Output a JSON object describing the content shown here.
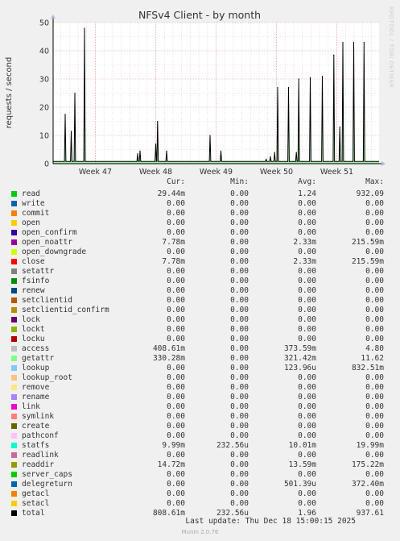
{
  "chart_data": {
    "type": "line",
    "title": "NFSv4 Client - by month",
    "ylabel": "requests / second",
    "ylim": [
      0,
      50
    ],
    "yticks": [
      0,
      10,
      20,
      30,
      40,
      50
    ],
    "xticks": [
      "Week 47",
      "Week 48",
      "Week 49",
      "Week 50",
      "Week 51"
    ],
    "xrange_weeks": [
      46.3,
      51.7
    ],
    "grid": true,
    "spikes": [
      {
        "week": 46.5,
        "value": 17.5
      },
      {
        "week": 46.6,
        "value": 11.5
      },
      {
        "week": 46.66,
        "value": 25
      },
      {
        "week": 46.82,
        "value": 48
      },
      {
        "week": 47.7,
        "value": 3.5
      },
      {
        "week": 47.74,
        "value": 4.5
      },
      {
        "week": 48.0,
        "value": 7
      },
      {
        "week": 48.03,
        "value": 15
      },
      {
        "week": 48.18,
        "value": 4.5
      },
      {
        "week": 48.9,
        "value": 10
      },
      {
        "week": 49.08,
        "value": 4.5
      },
      {
        "week": 49.83,
        "value": 1.5
      },
      {
        "week": 49.9,
        "value": 2.5
      },
      {
        "week": 49.97,
        "value": 4
      },
      {
        "week": 50.02,
        "value": 27
      },
      {
        "week": 50.2,
        "value": 27
      },
      {
        "week": 50.33,
        "value": 4
      },
      {
        "week": 50.37,
        "value": 30
      },
      {
        "week": 50.56,
        "value": 30.5
      },
      {
        "week": 50.76,
        "value": 31
      },
      {
        "week": 50.95,
        "value": 38.5
      },
      {
        "week": 51.05,
        "value": 13
      },
      {
        "week": 51.1,
        "value": 43
      },
      {
        "week": 51.28,
        "value": 43
      },
      {
        "week": 51.45,
        "value": 43
      }
    ],
    "baseline": 0.8,
    "series_color": "#000000",
    "fill_color": "#00cc00"
  },
  "legend": {
    "headers": {
      "cur": "Cur:",
      "min": "Min:",
      "avg": "Avg:",
      "max": "Max:"
    },
    "rows": [
      {
        "name": "read",
        "color": "#00cc00",
        "cur": "29.44m",
        "min": "0.00",
        "avg": "1.24",
        "max": "932.09"
      },
      {
        "name": "write",
        "color": "#0066b3",
        "cur": "0.00",
        "min": "0.00",
        "avg": "0.00",
        "max": "0.00"
      },
      {
        "name": "commit",
        "color": "#ff8000",
        "cur": "0.00",
        "min": "0.00",
        "avg": "0.00",
        "max": "0.00"
      },
      {
        "name": "open",
        "color": "#ffcc00",
        "cur": "0.00",
        "min": "0.00",
        "avg": "0.00",
        "max": "0.00"
      },
      {
        "name": "open_confirm",
        "color": "#330099",
        "cur": "0.00",
        "min": "0.00",
        "avg": "0.00",
        "max": "0.00"
      },
      {
        "name": "open_noattr",
        "color": "#990099",
        "cur": "7.78m",
        "min": "0.00",
        "avg": "2.33m",
        "max": "215.59m"
      },
      {
        "name": "open_downgrade",
        "color": "#ccff00",
        "cur": "0.00",
        "min": "0.00",
        "avg": "0.00",
        "max": "0.00"
      },
      {
        "name": "close",
        "color": "#ff0000",
        "cur": "7.78m",
        "min": "0.00",
        "avg": "2.33m",
        "max": "215.59m"
      },
      {
        "name": "setattr",
        "color": "#808080",
        "cur": "0.00",
        "min": "0.00",
        "avg": "0.00",
        "max": "0.00"
      },
      {
        "name": "fsinfo",
        "color": "#008f00",
        "cur": "0.00",
        "min": "0.00",
        "avg": "0.00",
        "max": "0.00"
      },
      {
        "name": "renew",
        "color": "#00487d",
        "cur": "0.00",
        "min": "0.00",
        "avg": "0.00",
        "max": "0.00"
      },
      {
        "name": "setclientid",
        "color": "#b35a00",
        "cur": "0.00",
        "min": "0.00",
        "avg": "0.00",
        "max": "0.00"
      },
      {
        "name": "setclientid_confirm",
        "color": "#b38f00",
        "cur": "0.00",
        "min": "0.00",
        "avg": "0.00",
        "max": "0.00"
      },
      {
        "name": "lock",
        "color": "#6b006b",
        "cur": "0.00",
        "min": "0.00",
        "avg": "0.00",
        "max": "0.00"
      },
      {
        "name": "lockt",
        "color": "#8fb300",
        "cur": "0.00",
        "min": "0.00",
        "avg": "0.00",
        "max": "0.00"
      },
      {
        "name": "locku",
        "color": "#b30000",
        "cur": "0.00",
        "min": "0.00",
        "avg": "0.00",
        "max": "0.00"
      },
      {
        "name": "access",
        "color": "#bebebe",
        "cur": "408.61m",
        "min": "0.00",
        "avg": "373.59m",
        "max": "4.80"
      },
      {
        "name": "getattr",
        "color": "#80ff80",
        "cur": "330.28m",
        "min": "0.00",
        "avg": "321.42m",
        "max": "11.62"
      },
      {
        "name": "lookup",
        "color": "#80c9ff",
        "cur": "0.00",
        "min": "0.00",
        "avg": "123.96u",
        "max": "832.51m"
      },
      {
        "name": "lookup_root",
        "color": "#ffc080",
        "cur": "0.00",
        "min": "0.00",
        "avg": "0.00",
        "max": "0.00"
      },
      {
        "name": "remove",
        "color": "#ffe680",
        "cur": "0.00",
        "min": "0.00",
        "avg": "0.00",
        "max": "0.00"
      },
      {
        "name": "rename",
        "color": "#aa80ff",
        "cur": "0.00",
        "min": "0.00",
        "avg": "0.00",
        "max": "0.00"
      },
      {
        "name": "link",
        "color": "#ee00cc",
        "cur": "0.00",
        "min": "0.00",
        "avg": "0.00",
        "max": "0.00"
      },
      {
        "name": "symlink",
        "color": "#ff8080",
        "cur": "0.00",
        "min": "0.00",
        "avg": "0.00",
        "max": "0.00"
      },
      {
        "name": "create",
        "color": "#666600",
        "cur": "0.00",
        "min": "0.00",
        "avg": "0.00",
        "max": "0.00"
      },
      {
        "name": "pathconf",
        "color": "#ffbfff",
        "cur": "0.00",
        "min": "0.00",
        "avg": "0.00",
        "max": "0.00"
      },
      {
        "name": "statfs",
        "color": "#00ffcc",
        "cur": "9.99m",
        "min": "232.56u",
        "avg": "10.01m",
        "max": "19.99m"
      },
      {
        "name": "readlink",
        "color": "#cc6699",
        "cur": "0.00",
        "min": "0.00",
        "avg": "0.00",
        "max": "0.00"
      },
      {
        "name": "readdir",
        "color": "#999900",
        "cur": "14.72m",
        "min": "0.00",
        "avg": "13.59m",
        "max": "175.22m"
      },
      {
        "name": "server_caps",
        "color": "#00cc00",
        "cur": "0.00",
        "min": "0.00",
        "avg": "0.00",
        "max": "0.00"
      },
      {
        "name": "delegreturn",
        "color": "#0066b3",
        "cur": "0.00",
        "min": "0.00",
        "avg": "501.39u",
        "max": "372.40m"
      },
      {
        "name": "getacl",
        "color": "#ff8000",
        "cur": "0.00",
        "min": "0.00",
        "avg": "0.00",
        "max": "0.00"
      },
      {
        "name": "setacl",
        "color": "#ffcc00",
        "cur": "0.00",
        "min": "0.00",
        "avg": "0.00",
        "max": "0.00"
      },
      {
        "name": "total",
        "color": "#000000",
        "cur": "808.61m",
        "min": "232.56u",
        "avg": "1.96",
        "max": "937.61"
      }
    ]
  },
  "footer": {
    "last_update": "Last update: Thu Dec 18 15:00:15 2025",
    "munin": "Munin 2.0.76",
    "rrdtool": "RRDTOOL / TOBI OETIKER"
  }
}
